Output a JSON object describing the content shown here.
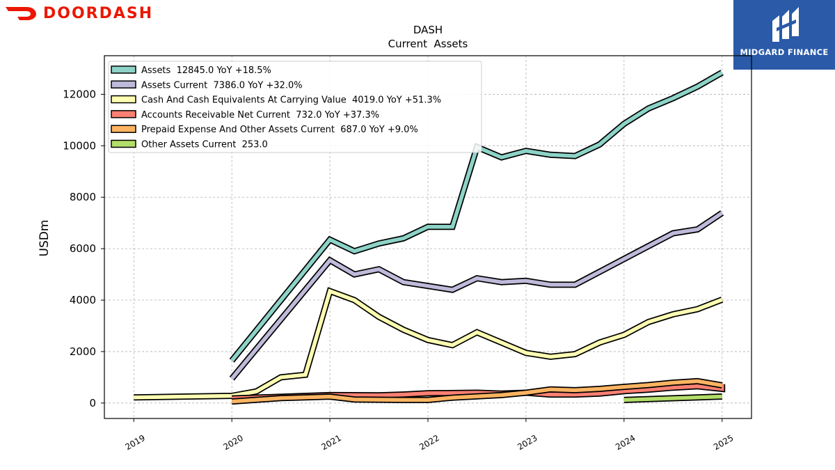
{
  "brand_left": {
    "name": "DOORDASH",
    "color": "#eb1700"
  },
  "brand_right": {
    "name": "MIDGARD FINANCE",
    "background": "#2a5aa8"
  },
  "chart_data": {
    "type": "line",
    "title": "DASH",
    "subtitle": "Current  Assets",
    "ylabel": "USDm",
    "xlabel": "",
    "xlim": [
      2018.7,
      2025.3
    ],
    "ylim": [
      -600,
      13500
    ],
    "x_ticks": [
      "2019",
      "2020",
      "2021",
      "2022",
      "2023",
      "2024",
      "2025"
    ],
    "y_ticks": [
      0,
      2000,
      4000,
      6000,
      8000,
      10000,
      12000
    ],
    "grid": true,
    "legend_position": "top-left",
    "series": [
      {
        "name": "Assets  12845.0 YoY +18.5%",
        "color": "#8dd3c7",
        "points": [
          [
            2020.0,
            1650
          ],
          [
            2021.0,
            6350
          ],
          [
            2021.25,
            5900
          ],
          [
            2021.5,
            6200
          ],
          [
            2021.75,
            6400
          ],
          [
            2022.0,
            6850
          ],
          [
            2022.25,
            6850
          ],
          [
            2022.5,
            9950
          ],
          [
            2022.75,
            9550
          ],
          [
            2023.0,
            9800
          ],
          [
            2023.25,
            9650
          ],
          [
            2023.5,
            9600
          ],
          [
            2023.75,
            10050
          ],
          [
            2024.0,
            10850
          ],
          [
            2024.25,
            11450
          ],
          [
            2024.5,
            11850
          ],
          [
            2024.75,
            12300
          ],
          [
            2025.0,
            12845
          ]
        ]
      },
      {
        "name": "Assets Current  7386.0 YoY +32.0%",
        "color": "#bebada",
        "points": [
          [
            2020.0,
            950
          ],
          [
            2021.0,
            5550
          ],
          [
            2021.25,
            5000
          ],
          [
            2021.5,
            5200
          ],
          [
            2021.75,
            4700
          ],
          [
            2022.0,
            4550
          ],
          [
            2022.25,
            4400
          ],
          [
            2022.5,
            4850
          ],
          [
            2022.75,
            4700
          ],
          [
            2023.0,
            4750
          ],
          [
            2023.25,
            4600
          ],
          [
            2023.5,
            4600
          ],
          [
            2023.75,
            5100
          ],
          [
            2024.0,
            5600
          ],
          [
            2024.25,
            6100
          ],
          [
            2024.5,
            6600
          ],
          [
            2024.75,
            6750
          ],
          [
            2025.0,
            7386
          ]
        ]
      },
      {
        "name": "Cash And Cash Equivalents At Carrying Value  4019.0 YoY +51.3%",
        "color": "#ffffb3",
        "points": [
          [
            2019.0,
            220
          ],
          [
            2020.0,
            280
          ],
          [
            2020.25,
            450
          ],
          [
            2020.5,
            1000
          ],
          [
            2020.75,
            1100
          ],
          [
            2021.0,
            4350
          ],
          [
            2021.25,
            4000
          ],
          [
            2021.5,
            3350
          ],
          [
            2021.75,
            2850
          ],
          [
            2022.0,
            2450
          ],
          [
            2022.25,
            2250
          ],
          [
            2022.5,
            2750
          ],
          [
            2022.75,
            2350
          ],
          [
            2023.0,
            1950
          ],
          [
            2023.25,
            1800
          ],
          [
            2023.5,
            1900
          ],
          [
            2023.75,
            2350
          ],
          [
            2024.0,
            2650
          ],
          [
            2024.25,
            3150
          ],
          [
            2024.5,
            3450
          ],
          [
            2024.75,
            3650
          ],
          [
            2025.0,
            4019
          ]
        ]
      },
      {
        "name": "Accounts Receivable Net Current  732.0 YoY +37.3%",
        "color": "#fb8072",
        "points": [
          [
            2020.0,
            180
          ],
          [
            2021.0,
            310
          ],
          [
            2021.5,
            300
          ],
          [
            2021.75,
            330
          ],
          [
            2022.0,
            380
          ],
          [
            2022.5,
            400
          ],
          [
            2022.75,
            370
          ],
          [
            2023.0,
            400
          ],
          [
            2023.25,
            330
          ],
          [
            2023.5,
            330
          ],
          [
            2023.75,
            370
          ],
          [
            2024.0,
            460
          ],
          [
            2024.25,
            520
          ],
          [
            2024.5,
            600
          ],
          [
            2024.75,
            650
          ],
          [
            2025.0,
            550
          ],
          [
            2025.0,
            732
          ]
        ]
      },
      {
        "name": "Prepaid Expense And Other Assets Current  687.0 YoY +9.0%",
        "color": "#fdb462",
        "points": [
          [
            2020.0,
            60
          ],
          [
            2020.5,
            190
          ],
          [
            2021.0,
            250
          ],
          [
            2021.25,
            140
          ],
          [
            2021.75,
            120
          ],
          [
            2022.0,
            120
          ],
          [
            2022.25,
            210
          ],
          [
            2022.75,
            310
          ],
          [
            2023.0,
            400
          ],
          [
            2023.25,
            530
          ],
          [
            2023.5,
            500
          ],
          [
            2023.75,
            550
          ],
          [
            2024.0,
            630
          ],
          [
            2024.25,
            700
          ],
          [
            2024.5,
            790
          ],
          [
            2024.75,
            850
          ],
          [
            2025.0,
            687
          ]
        ]
      },
      {
        "name": "Other Assets Current  253.0",
        "color": "#b3de69",
        "points": [
          [
            2024.0,
            120
          ],
          [
            2025.0,
            253
          ]
        ]
      }
    ]
  }
}
